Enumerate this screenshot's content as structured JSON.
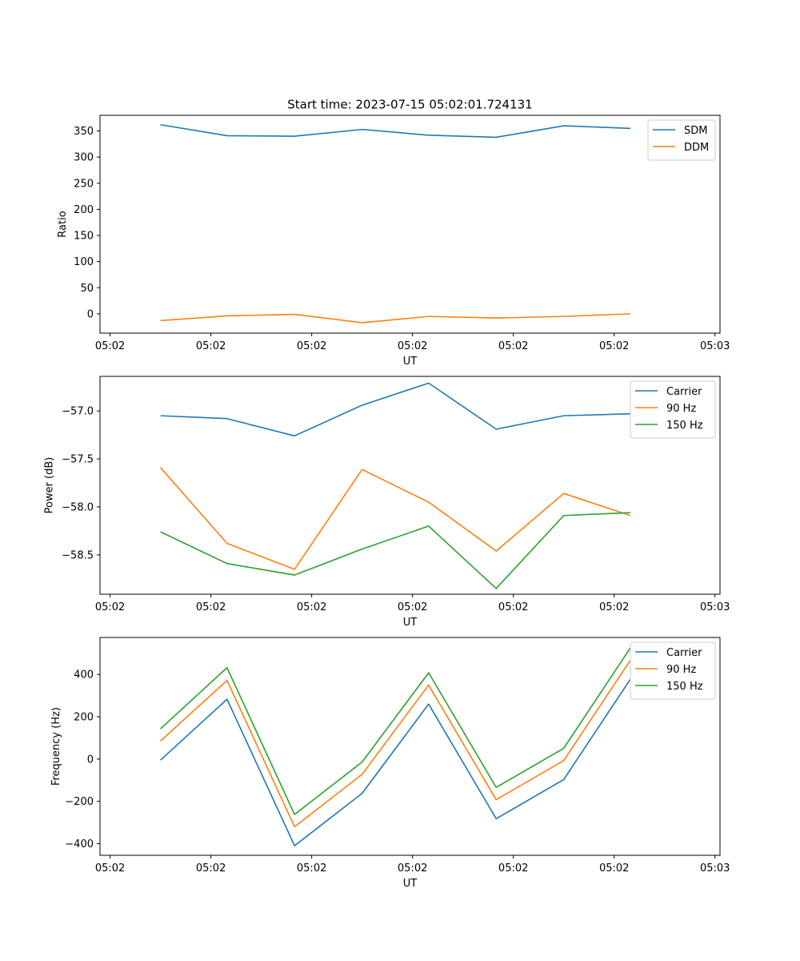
{
  "figure": {
    "title": "Start time: 2023-07-15 05:02:01.724131"
  },
  "chart_data": [
    {
      "type": "line",
      "name": "ratio-chart",
      "title": "Start time: 2023-07-15 05:02:01.724131",
      "xlabel": "UT",
      "ylabel": "Ratio",
      "x": [
        0.5,
        1.16,
        1.83,
        2.5,
        3.16,
        3.83,
        4.5,
        5.16
      ],
      "xlim": [
        -0.1,
        6.05
      ],
      "xticks": [
        0,
        1,
        2,
        3,
        4,
        5,
        6
      ],
      "xtick_labels": [
        "05:02",
        "05:02",
        "05:02",
        "05:02",
        "05:02",
        "05:02",
        "05:03"
      ],
      "ylim": [
        -37,
        380
      ],
      "yticks": [
        0,
        50,
        100,
        150,
        200,
        250,
        300,
        350
      ],
      "ytick_labels": [
        "0",
        "50",
        "100",
        "150",
        "200",
        "250",
        "300",
        "350"
      ],
      "legend_position": "top-right",
      "series": [
        {
          "name": "SDM",
          "color": "#1f77b4",
          "values": [
            362,
            341,
            340,
            353,
            342,
            338,
            360,
            355
          ]
        },
        {
          "name": "DDM",
          "color": "#ff7f0e",
          "values": [
            -13,
            -4,
            -1,
            -17,
            -5,
            -8,
            -5,
            0
          ]
        }
      ]
    },
    {
      "type": "line",
      "name": "power-chart",
      "title": "",
      "xlabel": "UT",
      "ylabel": "Power (dB)",
      "x": [
        0.5,
        1.16,
        1.83,
        2.5,
        3.16,
        3.83,
        4.5,
        5.16
      ],
      "xlim": [
        -0.1,
        6.05
      ],
      "xticks": [
        0,
        1,
        2,
        3,
        4,
        5,
        6
      ],
      "xtick_labels": [
        "05:02",
        "05:02",
        "05:02",
        "05:02",
        "05:02",
        "05:02",
        "05:03"
      ],
      "ylim": [
        -58.91,
        -56.64
      ],
      "yticks": [
        -58.5,
        -58.0,
        -57.5,
        -57.0
      ],
      "ytick_labels": [
        "−58.5",
        "−58.0",
        "−57.5",
        "−57.0"
      ],
      "legend_position": "top-right",
      "series": [
        {
          "name": "Carrier",
          "color": "#1f77b4",
          "values": [
            -57.05,
            -57.08,
            -57.26,
            -56.94,
            -56.71,
            -57.19,
            -57.05,
            -57.03
          ]
        },
        {
          "name": "90 Hz",
          "color": "#ff7f0e",
          "values": [
            -57.59,
            -58.38,
            -58.65,
            -57.61,
            -57.95,
            -58.46,
            -57.86,
            -58.09
          ]
        },
        {
          "name": "150 Hz",
          "color": "#2ca02c",
          "values": [
            -58.26,
            -58.59,
            -58.71,
            -58.44,
            -58.2,
            -58.85,
            -58.09,
            -58.06
          ]
        }
      ]
    },
    {
      "type": "line",
      "name": "frequency-chart",
      "title": "",
      "xlabel": "UT",
      "ylabel": "Frequency (Hz)",
      "x": [
        0.5,
        1.16,
        1.83,
        2.5,
        3.16,
        3.83,
        4.5,
        5.16
      ],
      "xlim": [
        -0.1,
        6.05
      ],
      "xticks": [
        0,
        1,
        2,
        3,
        4,
        5,
        6
      ],
      "xtick_labels": [
        "05:02",
        "05:02",
        "05:02",
        "05:02",
        "05:02",
        "05:02",
        "05:03"
      ],
      "ylim": [
        -455,
        575
      ],
      "yticks": [
        -400,
        -200,
        0,
        200,
        400
      ],
      "ytick_labels": [
        "−400",
        "−200",
        "0",
        "200",
        "400"
      ],
      "legend_position": "top-right",
      "series": [
        {
          "name": "Carrier",
          "color": "#1f77b4",
          "values": [
            -5,
            283,
            -410,
            -162,
            260,
            -282,
            -97,
            377
          ]
        },
        {
          "name": "90 Hz",
          "color": "#ff7f0e",
          "values": [
            85,
            372,
            -320,
            -72,
            350,
            -192,
            -7,
            467
          ]
        },
        {
          "name": "150 Hz",
          "color": "#2ca02c",
          "values": [
            143,
            432,
            -262,
            -14,
            408,
            -134,
            51,
            525
          ]
        }
      ]
    }
  ]
}
